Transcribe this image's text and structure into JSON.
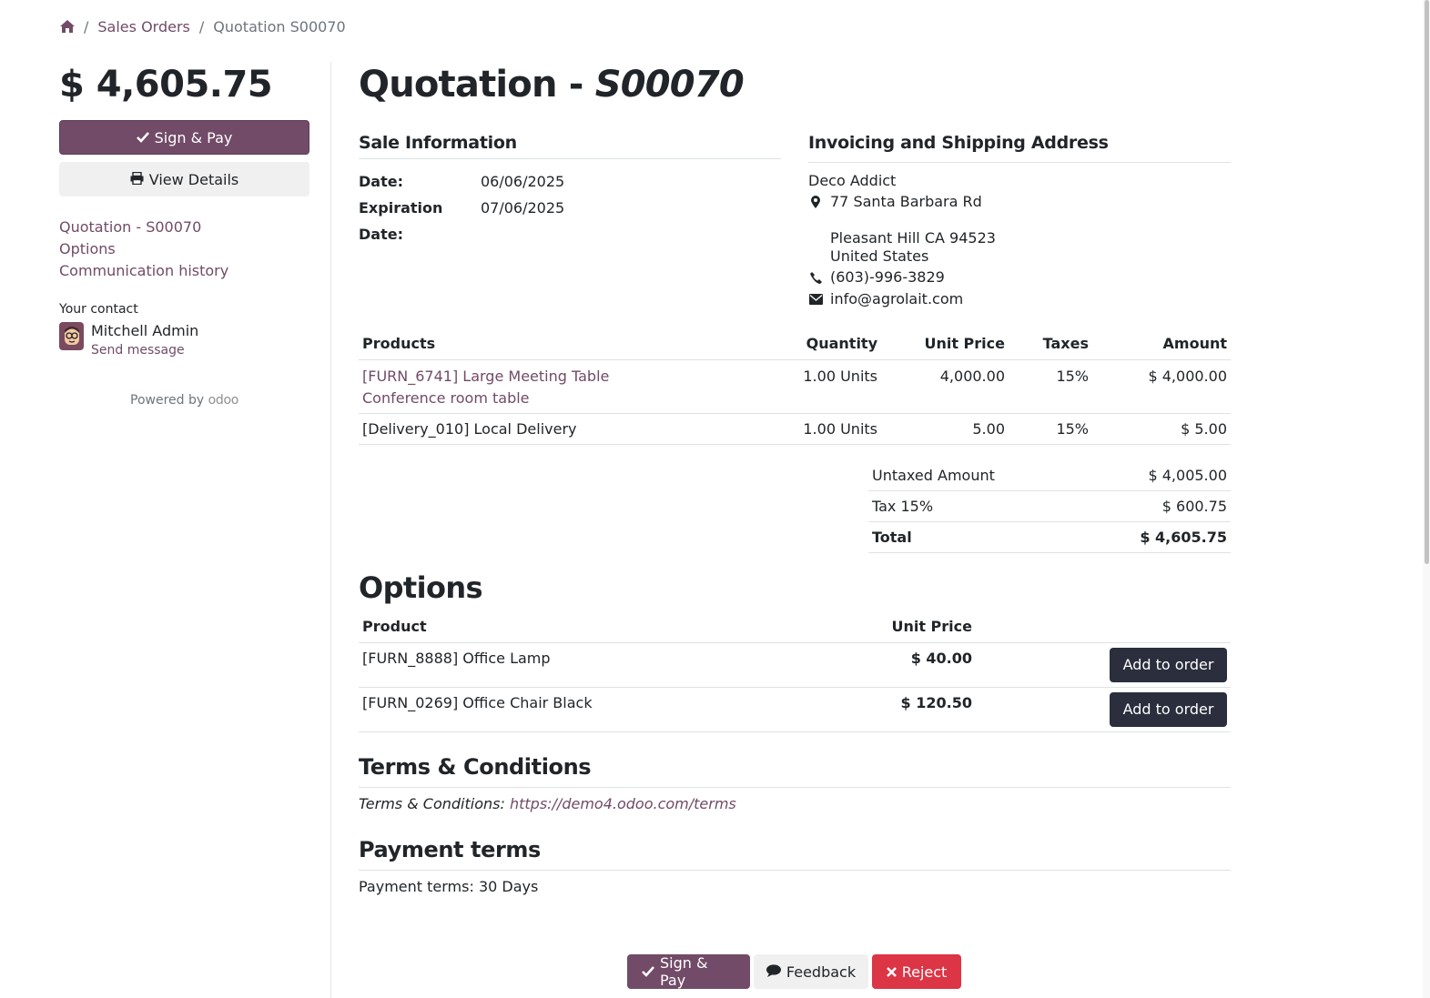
{
  "breadcrumb": {
    "items": [
      "Sales Orders",
      "Quotation S00070"
    ]
  },
  "sidebar": {
    "total_amount": "$ 4,605.75",
    "sign_pay_label": "Sign & Pay",
    "view_details_label": "View Details",
    "nav": [
      "Quotation - S00070",
      "Options",
      "Communication history"
    ],
    "contact_title": "Your contact",
    "contact_name": "Mitchell Admin",
    "send_message": "Send message",
    "powered_by": "Powered by",
    "powered_brand": "odoo"
  },
  "main": {
    "title_prefix": "Quotation - ",
    "title_ref": "S00070",
    "sale_info": {
      "heading": "Sale Information",
      "date_label": "Date:",
      "date_value": "06/06/2025",
      "expiration_label": "Expiration Date:",
      "expiration_value": "07/06/2025"
    },
    "address": {
      "heading": "Invoicing and Shipping Address",
      "name": "Deco Addict",
      "street": "77 Santa Barbara Rd",
      "city": "Pleasant Hill CA 94523",
      "country": "United States",
      "phone": "(603)-996-3829",
      "email": "info@agrolait.com"
    },
    "products": {
      "headers": [
        "Products",
        "Quantity",
        "Unit Price",
        "Taxes",
        "Amount"
      ],
      "rows": [
        {
          "name": "[FURN_6741] Large Meeting Table",
          "desc": "Conference room table",
          "qty": "1.00 Units",
          "price": "4,000.00",
          "tax": "15%",
          "amount": "$ 4,000.00"
        },
        {
          "name": "[Delivery_010] Local Delivery",
          "desc": "",
          "qty": "1.00 Units",
          "price": "5.00",
          "tax": "15%",
          "amount": "$ 5.00"
        }
      ]
    },
    "totals": {
      "untaxed_label": "Untaxed Amount",
      "untaxed_value": "$ 4,005.00",
      "tax_label": "Tax 15%",
      "tax_value": "$ 600.75",
      "total_label": "Total",
      "total_value": "$ 4,605.75"
    },
    "options": {
      "heading": "Options",
      "headers": [
        "Product",
        "Unit Price"
      ],
      "rows": [
        {
          "name": "[FURN_8888] Office Lamp",
          "price": "$ 40.00",
          "button": "Add to order"
        },
        {
          "name": "[FURN_0269] Office Chair Black",
          "price": "$ 120.50",
          "button": "Add to order"
        }
      ]
    },
    "terms": {
      "heading": "Terms & Conditions",
      "label": "Terms & Conditions:",
      "link": "https://demo4.odoo.com/terms"
    },
    "payment": {
      "heading": "Payment terms",
      "text": "Payment terms: 30 Days"
    }
  },
  "footer": {
    "sign_pay": "Sign & Pay",
    "feedback": "Feedback",
    "reject": "Reject"
  },
  "colors": {
    "brand": "#714b67",
    "danger": "#dc3545",
    "dark_button": "#2a2e3d"
  }
}
